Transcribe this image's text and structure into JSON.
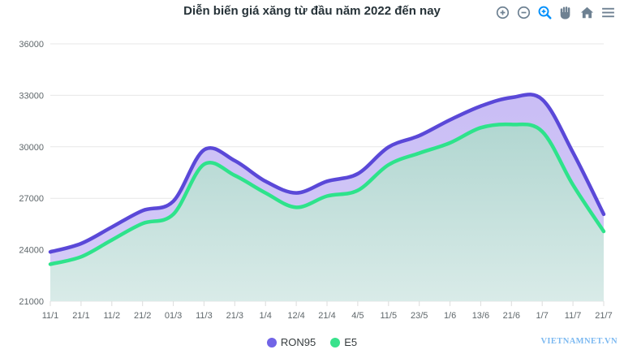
{
  "title": "Diễn biến giá xăng từ đầu năm 2022 đến nay",
  "watermark": "VIETNAMNET.VN",
  "toolbar": {
    "items": [
      "zoom-in",
      "zoom-out",
      "selection-zoom",
      "pan",
      "reset-zoom",
      "menu"
    ],
    "active_item": "selection-zoom"
  },
  "colors": {
    "background": "#ffffff",
    "title": "#263238",
    "axis_label": "#5f676b",
    "grid": "#e7e7e7",
    "tick": "#dcdcdc",
    "toolbar_icon": "#6e8192",
    "toolbar_active": "#008ffb",
    "legend_text": "#373d3f",
    "watermark": "#7cb9f1"
  },
  "chart_data": {
    "type": "area",
    "curve": "smooth",
    "title": "Diễn biến giá xăng từ đầu năm 2022 đến nay",
    "xlabel": "",
    "ylabel": "",
    "ylim": [
      21000,
      36000
    ],
    "yticks": [
      36000,
      33000,
      30000,
      27000,
      24000,
      21000
    ],
    "grid": "horizontal-only",
    "legend_position": "bottom",
    "categories": [
      "11/1",
      "21/1",
      "11/2",
      "21/2",
      "01/3",
      "11/3",
      "21/3",
      "1/4",
      "12/4",
      "21/4",
      "4/5",
      "11/5",
      "23/5",
      "1/6",
      "13/6",
      "21/6",
      "1/7",
      "11/7",
      "21/7"
    ],
    "series": [
      {
        "name": "RON95",
        "color": "#5a48d8",
        "legend_marker": "#7164e6",
        "fill_top": "#c6b9f4",
        "fill_bottom": "#d6cdf8",
        "values": [
          23870,
          24360,
          25320,
          26280,
          26830,
          29820,
          29190,
          27990,
          27310,
          27990,
          28430,
          29980,
          30650,
          31570,
          32370,
          32870,
          32760,
          29670,
          26070
        ]
      },
      {
        "name": "E5",
        "color": "#2ee38b",
        "legend_marker": "#39e28c",
        "fill_top": "#9fcdc6",
        "fill_bottom": "#d9ebe8",
        "values": [
          23160,
          23590,
          24570,
          25530,
          26070,
          28980,
          28330,
          27310,
          26470,
          27130,
          27460,
          28950,
          29630,
          30230,
          31110,
          31300,
          30890,
          27780,
          25070
        ]
      }
    ]
  }
}
